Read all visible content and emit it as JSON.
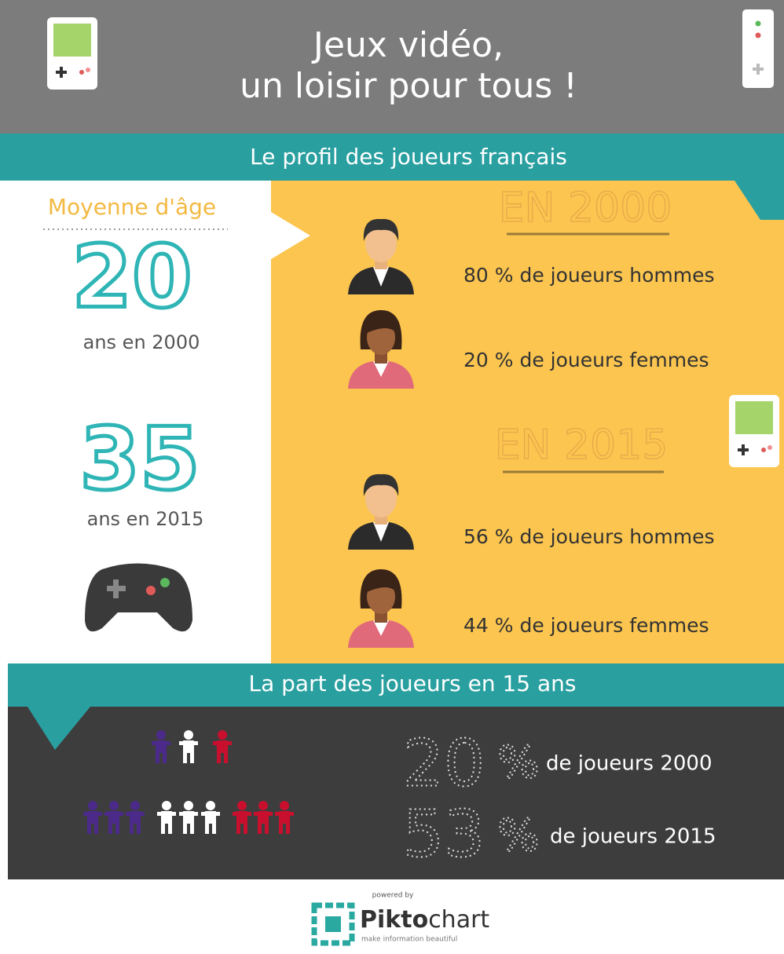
{
  "header": {
    "title_line1": "Jeux vidéo,",
    "title_line2": "un loisir pour tous !"
  },
  "profile": {
    "heading": "Le profil des joueurs français",
    "average_age": {
      "label": "Moyenne d'âge",
      "items": [
        {
          "value": 20,
          "caption": "ans en 2000"
        },
        {
          "value": 35,
          "caption": "ans en 2015"
        }
      ]
    },
    "years": [
      {
        "label": "EN 2000",
        "men": "80 % de joueurs hommes",
        "women": "20 % de joueurs femmes"
      },
      {
        "label": "EN 2015",
        "men": "56 % de joueurs hommes",
        "women": "44 % de joueurs femmes"
      }
    ]
  },
  "share": {
    "heading": "La part des joueurs en 15 ans",
    "items": [
      {
        "value": 20,
        "unit": "%",
        "caption": "de joueurs 2000"
      },
      {
        "value": 53,
        "unit": "%",
        "caption": "de joueurs 2015"
      }
    ]
  },
  "footer": {
    "powered_by": "powered by",
    "brand_bold": "Pikto",
    "brand_light": "chart",
    "tagline": "make information beautiful"
  }
}
